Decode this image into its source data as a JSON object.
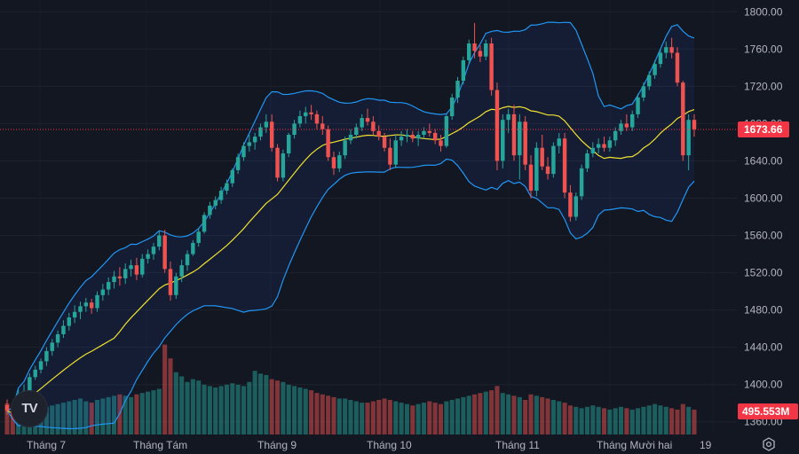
{
  "chart_data": {
    "type": "candlestick",
    "title": "",
    "x_labels": [
      "Tháng 7",
      "Tháng Tám",
      "Tháng 9",
      "Tháng 10",
      "Tháng 11",
      "Tháng Mười hai",
      "19"
    ],
    "y_ticks": [
      "1800.00",
      "1760.00",
      "1720.00",
      "1680.00",
      "1640.00",
      "1600.00",
      "1560.00",
      "1520.00",
      "1480.00",
      "1440.00",
      "1400.00",
      "1360.00"
    ],
    "ylim": [
      1355,
      1805
    ],
    "last_price": "1673.66",
    "volume_label": "495.553M",
    "indicators": [
      "Bollinger Bands (upper, basis, lower)",
      "Volume"
    ],
    "colors": {
      "up": "#26a69a",
      "down": "#ef5350",
      "bb_band": "#2196f3",
      "bb_basis": "#f0e130",
      "volume_up": "#26a69a",
      "volume_down": "#ef5350",
      "price_tag": "#f23645",
      "background": "#131722",
      "text": "#b2b5be"
    },
    "candles": [
      [
        1378,
        1384,
        1368,
        1372
      ],
      [
        1372,
        1376,
        1362,
        1366
      ],
      [
        1366,
        1395,
        1364,
        1390
      ],
      [
        1390,
        1400,
        1385,
        1393
      ],
      [
        1393,
        1412,
        1390,
        1408
      ],
      [
        1408,
        1420,
        1405,
        1416
      ],
      [
        1416,
        1428,
        1412,
        1425
      ],
      [
        1425,
        1440,
        1420,
        1436
      ],
      [
        1436,
        1449,
        1431,
        1445
      ],
      [
        1445,
        1458,
        1440,
        1454
      ],
      [
        1454,
        1469,
        1450,
        1463
      ],
      [
        1463,
        1477,
        1458,
        1472
      ],
      [
        1472,
        1485,
        1466,
        1478
      ],
      [
        1478,
        1489,
        1470,
        1484
      ],
      [
        1484,
        1493,
        1478,
        1488
      ],
      [
        1488,
        1492,
        1476,
        1482
      ],
      [
        1482,
        1500,
        1478,
        1496
      ],
      [
        1496,
        1508,
        1490,
        1502
      ],
      [
        1502,
        1515,
        1496,
        1510
      ],
      [
        1510,
        1522,
        1503,
        1516
      ],
      [
        1516,
        1526,
        1506,
        1514
      ],
      [
        1514,
        1530,
        1508,
        1524
      ],
      [
        1524,
        1534,
        1516,
        1528
      ],
      [
        1528,
        1536,
        1512,
        1518
      ],
      [
        1518,
        1540,
        1515,
        1535
      ],
      [
        1535,
        1545,
        1530,
        1540
      ],
      [
        1540,
        1552,
        1534,
        1548
      ],
      [
        1548,
        1565,
        1544,
        1560
      ],
      [
        1560,
        1566,
        1520,
        1524
      ],
      [
        1524,
        1532,
        1490,
        1496
      ],
      [
        1496,
        1520,
        1492,
        1516
      ],
      [
        1516,
        1534,
        1510,
        1528
      ],
      [
        1528,
        1544,
        1522,
        1540
      ],
      [
        1540,
        1555,
        1538,
        1552
      ],
      [
        1552,
        1568,
        1548,
        1564
      ],
      [
        1564,
        1585,
        1562,
        1582
      ],
      [
        1582,
        1596,
        1578,
        1592
      ],
      [
        1592,
        1602,
        1588,
        1598
      ],
      [
        1598,
        1612,
        1594,
        1608
      ],
      [
        1608,
        1620,
        1604,
        1616
      ],
      [
        1616,
        1632,
        1612,
        1630
      ],
      [
        1630,
        1648,
        1626,
        1644
      ],
      [
        1644,
        1660,
        1640,
        1656
      ],
      [
        1656,
        1668,
        1650,
        1660
      ],
      [
        1660,
        1670,
        1652,
        1666
      ],
      [
        1666,
        1680,
        1662,
        1676
      ],
      [
        1676,
        1690,
        1670,
        1682
      ],
      [
        1682,
        1690,
        1650,
        1654
      ],
      [
        1654,
        1658,
        1618,
        1622
      ],
      [
        1622,
        1652,
        1618,
        1648
      ],
      [
        1648,
        1670,
        1644,
        1668
      ],
      [
        1668,
        1684,
        1664,
        1680
      ],
      [
        1680,
        1694,
        1676,
        1688
      ],
      [
        1688,
        1698,
        1680,
        1692
      ],
      [
        1692,
        1700,
        1684,
        1690
      ],
      [
        1690,
        1694,
        1674,
        1680
      ],
      [
        1680,
        1688,
        1668,
        1674
      ],
      [
        1674,
        1678,
        1640,
        1644
      ],
      [
        1644,
        1650,
        1625,
        1632
      ],
      [
        1632,
        1650,
        1628,
        1646
      ],
      [
        1646,
        1666,
        1642,
        1662
      ],
      [
        1662,
        1674,
        1658,
        1668
      ],
      [
        1668,
        1680,
        1664,
        1676
      ],
      [
        1676,
        1690,
        1672,
        1686
      ],
      [
        1686,
        1696,
        1678,
        1682
      ],
      [
        1682,
        1688,
        1668,
        1672
      ],
      [
        1672,
        1678,
        1662,
        1666
      ],
      [
        1666,
        1670,
        1650,
        1654
      ],
      [
        1654,
        1664,
        1630,
        1636
      ],
      [
        1636,
        1668,
        1632,
        1662
      ],
      [
        1662,
        1672,
        1656,
        1666
      ],
      [
        1666,
        1674,
        1660,
        1668
      ],
      [
        1668,
        1672,
        1660,
        1664
      ],
      [
        1664,
        1672,
        1656,
        1668
      ],
      [
        1668,
        1676,
        1664,
        1672
      ],
      [
        1672,
        1680,
        1666,
        1670
      ],
      [
        1670,
        1674,
        1658,
        1662
      ],
      [
        1662,
        1668,
        1650,
        1656
      ],
      [
        1656,
        1690,
        1654,
        1688
      ],
      [
        1688,
        1712,
        1684,
        1708
      ],
      [
        1708,
        1730,
        1702,
        1726
      ],
      [
        1726,
        1752,
        1722,
        1748
      ],
      [
        1748,
        1770,
        1744,
        1766
      ],
      [
        1766,
        1788,
        1750,
        1758
      ],
      [
        1758,
        1764,
        1746,
        1752
      ],
      [
        1752,
        1770,
        1748,
        1766
      ],
      [
        1766,
        1772,
        1710,
        1716
      ],
      [
        1716,
        1724,
        1630,
        1640
      ],
      [
        1640,
        1690,
        1632,
        1684
      ],
      [
        1684,
        1696,
        1670,
        1690
      ],
      [
        1690,
        1700,
        1640,
        1646
      ],
      [
        1646,
        1690,
        1620,
        1682
      ],
      [
        1682,
        1688,
        1630,
        1636
      ],
      [
        1636,
        1646,
        1600,
        1608
      ],
      [
        1608,
        1660,
        1602,
        1654
      ],
      [
        1654,
        1668,
        1630,
        1634
      ],
      [
        1634,
        1644,
        1620,
        1626
      ],
      [
        1626,
        1660,
        1622,
        1656
      ],
      [
        1656,
        1670,
        1648,
        1664
      ],
      [
        1664,
        1670,
        1600,
        1606
      ],
      [
        1606,
        1614,
        1575,
        1580
      ],
      [
        1580,
        1606,
        1576,
        1602
      ],
      [
        1602,
        1636,
        1598,
        1632
      ],
      [
        1632,
        1652,
        1628,
        1648
      ],
      [
        1648,
        1660,
        1644,
        1654
      ],
      [
        1654,
        1664,
        1648,
        1658
      ],
      [
        1658,
        1666,
        1650,
        1654
      ],
      [
        1654,
        1666,
        1650,
        1662
      ],
      [
        1662,
        1676,
        1656,
        1672
      ],
      [
        1672,
        1684,
        1668,
        1680
      ],
      [
        1680,
        1690,
        1672,
        1676
      ],
      [
        1676,
        1694,
        1672,
        1690
      ],
      [
        1690,
        1712,
        1686,
        1708
      ],
      [
        1708,
        1724,
        1704,
        1720
      ],
      [
        1720,
        1736,
        1716,
        1732
      ],
      [
        1732,
        1748,
        1728,
        1744
      ],
      [
        1744,
        1760,
        1740,
        1756
      ],
      [
        1756,
        1768,
        1750,
        1762
      ],
      [
        1762,
        1772,
        1750,
        1756
      ],
      [
        1756,
        1762,
        1720,
        1724
      ],
      [
        1724,
        1726,
        1640,
        1646
      ],
      [
        1646,
        1690,
        1630,
        1684
      ],
      [
        1684,
        1690,
        1666,
        1674
      ]
    ],
    "volumes": [
      45,
      38,
      33,
      30,
      34,
      36,
      38,
      40,
      42,
      44,
      46,
      48,
      50,
      52,
      48,
      46,
      50,
      52,
      54,
      56,
      58,
      56,
      54,
      58,
      60,
      62,
      64,
      66,
      130,
      110,
      90,
      84,
      76,
      80,
      78,
      72,
      70,
      68,
      70,
      72,
      74,
      72,
      70,
      76,
      92,
      88,
      86,
      80,
      78,
      76,
      72,
      70,
      68,
      66,
      64,
      60,
      58,
      56,
      54,
      52,
      52,
      50,
      48,
      46,
      46,
      48,
      50,
      52,
      50,
      48,
      46,
      44,
      42,
      44,
      46,
      48,
      46,
      44,
      48,
      50,
      52,
      54,
      56,
      58,
      60,
      62,
      64,
      70,
      60,
      58,
      56,
      54,
      50,
      58,
      56,
      54,
      52,
      50,
      48,
      46,
      42,
      40,
      38,
      40,
      42,
      40,
      38,
      36,
      38,
      40,
      38,
      36,
      38,
      40,
      42,
      44,
      42,
      40,
      38,
      36,
      44,
      40,
      36
    ]
  }
}
